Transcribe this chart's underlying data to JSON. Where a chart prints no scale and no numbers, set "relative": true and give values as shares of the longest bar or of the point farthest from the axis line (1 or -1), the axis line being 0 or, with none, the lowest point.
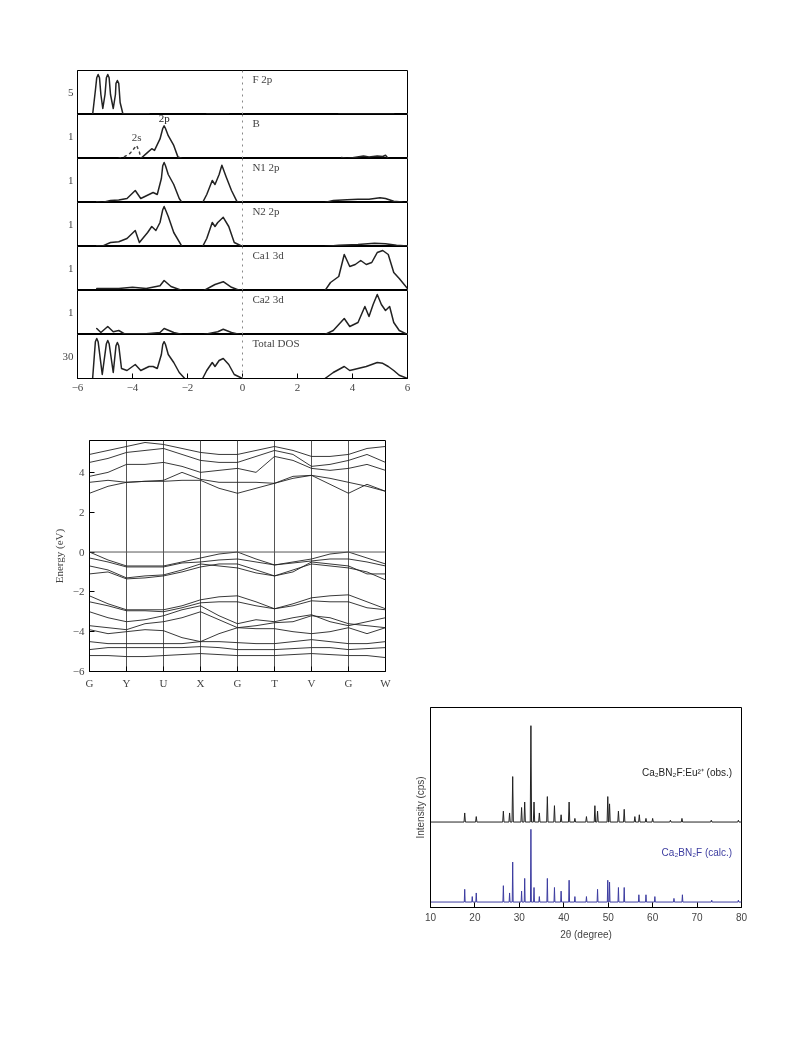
{
  "chart_data": [
    {
      "type": "line",
      "title": "F 2p",
      "relative": true,
      "xlim": [
        -6,
        6
      ],
      "tick_labels": false,
      "series": [
        {
          "color": "#222222",
          "x": [
            -5.45,
            -5.35,
            -5.3,
            -5.25,
            -5.2,
            -5.15,
            -5.08,
            -5.0,
            -4.95,
            -4.9,
            -4.85,
            -4.8,
            -4.7,
            -4.62,
            -4.6,
            -4.55,
            -4.5,
            -4.45,
            -4.35,
            -4.0,
            -3.4,
            -3.3,
            -1.3,
            -0.5,
            -0.4,
            3.5,
            5.5
          ],
          "values": [
            0,
            0.6,
            0.92,
            1.0,
            0.92,
            0.5,
            0.15,
            0.5,
            0.92,
            1.0,
            0.92,
            0.5,
            0.15,
            0.5,
            0.78,
            0.85,
            0.78,
            0.3,
            0.02,
            0.02,
            0.02,
            null,
            0.01,
            0.01,
            null,
            0.01,
            0.01
          ]
        }
      ],
      "ref_lines": [
        {
          "axis": "x",
          "value": 0,
          "color": "#888888",
          "line_style": "dotted"
        }
      ],
      "annotations": [
        "5"
      ]
    },
    {
      "type": "line",
      "title": "B",
      "relative": true,
      "xlim": [
        -6,
        6
      ],
      "tick_labels": false,
      "series": [
        {
          "name": "2p",
          "color": "#222222",
          "x": [
            -3.7,
            -3.5,
            -3.3,
            -3.2,
            -3.0,
            -2.9,
            -2.85,
            -2.8,
            -2.7,
            -2.5,
            -2.35,
            -2.2,
            -2.0,
            3.6,
            3.8,
            4.0,
            4.4,
            4.6,
            4.9,
            5.1,
            5.2,
            5.3
          ],
          "values": [
            0,
            0.15,
            0.3,
            0.25,
            0.6,
            0.92,
            1.0,
            0.92,
            0.7,
            0.4,
            0.05,
            0,
            null,
            0.03,
            0,
            0.02,
            0.08,
            0.05,
            0.08,
            0.06,
            0.1,
            0
          ]
        },
        {
          "name": "2s",
          "color": "#444444",
          "line_style": "dotted",
          "x": [
            -4.5,
            -4.3,
            -4.1,
            -3.95,
            -3.85,
            -3.75,
            -3.7
          ],
          "values": [
            0,
            0.05,
            0.15,
            0.3,
            0.4,
            0.2,
            0
          ]
        }
      ],
      "ref_lines": [
        {
          "axis": "x",
          "value": 0,
          "color": "#888888",
          "line_style": "dotted"
        }
      ],
      "annotations": [
        "1"
      ]
    },
    {
      "type": "line",
      "title": "N1 2p",
      "relative": true,
      "xlim": [
        -6,
        6
      ],
      "tick_labels": false,
      "series": [
        {
          "color": "#222222",
          "x": [
            -5.3,
            -5.1,
            -4.8,
            -4.5,
            -4.2,
            -3.9,
            -3.7,
            -3.4,
            -3.25,
            -3.1,
            -2.95,
            -2.9,
            -2.85,
            -2.8,
            -2.7,
            -2.5,
            -2.3,
            -2.2,
            -1.8,
            -1.45,
            -1.3,
            -1.1,
            -1.0,
            -0.85,
            -0.75,
            -0.6,
            -0.4,
            -0.2,
            0,
            1.5,
            3.0,
            3.3,
            3.8,
            4.2,
            4.6,
            5.0,
            5.2,
            5.5,
            5.8
          ],
          "values": [
            0.02,
            0,
            0.05,
            0.06,
            0.1,
            0.3,
            0.1,
            0.2,
            0.25,
            0.2,
            0.6,
            0.92,
            1.0,
            0.92,
            0.7,
            0.45,
            0.1,
            0,
            null,
            0,
            0.2,
            0.55,
            0.45,
            0.7,
            0.93,
            0.65,
            0.3,
            0.02,
            0,
            null,
            0,
            0.05,
            0.07,
            0.08,
            0.08,
            0.12,
            0.1,
            0.03,
            0.01
          ]
        }
      ],
      "ref_lines": [
        {
          "axis": "x",
          "value": 0,
          "color": "#888888",
          "line_style": "dotted"
        }
      ],
      "annotations": [
        "1"
      ]
    },
    {
      "type": "line",
      "title": "N2 2p",
      "relative": true,
      "xlim": [
        -6,
        6
      ],
      "tick_labels": false,
      "series": [
        {
          "color": "#222222",
          "x": [
            -5.3,
            -5.1,
            -4.8,
            -4.5,
            -4.2,
            -3.9,
            -3.75,
            -3.45,
            -3.3,
            -3.15,
            -3.0,
            -2.9,
            -2.85,
            -2.8,
            -2.7,
            -2.5,
            -2.2,
            -1.8,
            -1.45,
            -1.3,
            -1.1,
            -1.0,
            -0.9,
            -0.7,
            -0.5,
            -0.3,
            0,
            1.5,
            3.0,
            3.5,
            4.2,
            4.8,
            5.2,
            5.6,
            6.0
          ],
          "values": [
            0.02,
            0.01,
            0.1,
            0.12,
            0.2,
            0.4,
            0.1,
            0.35,
            0.5,
            0.4,
            0.6,
            0.92,
            1.0,
            0.92,
            0.75,
            0.35,
            0,
            null,
            0,
            0.2,
            0.6,
            0.5,
            0.6,
            0.73,
            0.5,
            0.1,
            0,
            null,
            0,
            0.03,
            0.05,
            0.08,
            0.07,
            0.03,
            0.01
          ]
        }
      ],
      "ref_lines": [
        {
          "axis": "x",
          "value": 0,
          "color": "#888888",
          "line_style": "dotted"
        }
      ],
      "annotations": [
        "1"
      ]
    },
    {
      "type": "line",
      "title": "Ca1 3d",
      "relative": true,
      "xlim": [
        -6,
        6
      ],
      "tick_labels": false,
      "series": [
        {
          "color": "#222222",
          "x": [
            -5.3,
            -4.5,
            -4.0,
            -3.5,
            -3.0,
            -2.85,
            -2.6,
            -2.2,
            -1.8,
            -1.4,
            -1.0,
            -0.7,
            -0.4,
            -0.1,
            1.5,
            3.0,
            3.2,
            3.5,
            3.7,
            3.9,
            4.1,
            4.3,
            4.5,
            4.7,
            4.9,
            5.1,
            5.3,
            5.5,
            5.7,
            6.0
          ],
          "values": [
            0.05,
            0.05,
            0.08,
            0.05,
            0.12,
            0.25,
            0.1,
            0,
            null,
            0,
            0.15,
            0.22,
            0.08,
            0,
            null,
            0,
            0.2,
            0.35,
            0.9,
            0.6,
            0.65,
            0.75,
            0.65,
            0.7,
            0.95,
            1.0,
            0.9,
            0.45,
            0.3,
            0.05
          ]
        }
      ],
      "ref_lines": [
        {
          "axis": "x",
          "value": 0,
          "color": "#888888",
          "line_style": "dotted"
        }
      ],
      "annotations": [
        "1"
      ]
    },
    {
      "type": "line",
      "title": "Ca2 3d",
      "relative": true,
      "xlim": [
        -6,
        6
      ],
      "tick_labels": false,
      "series": [
        {
          "color": "#222222",
          "x": [
            -5.3,
            -5.15,
            -4.9,
            -4.7,
            -4.5,
            -4.3,
            -3.5,
            -3.0,
            -2.85,
            -2.5,
            -2.2,
            -1.8,
            -1.4,
            -0.9,
            -0.7,
            -0.4,
            -0.1,
            1.5,
            3.0,
            3.3,
            3.7,
            3.9,
            4.2,
            4.45,
            4.6,
            4.75,
            4.9,
            5.05,
            5.2,
            5.35,
            5.5,
            5.7,
            6.0
          ],
          "values": [
            0.15,
            0.05,
            0.2,
            0.07,
            0.1,
            0.02,
            0.02,
            0.05,
            0.15,
            0.05,
            0,
            null,
            0,
            0.07,
            0.13,
            0.05,
            0,
            null,
            0,
            0.1,
            0.4,
            0.2,
            0.3,
            0.7,
            0.45,
            0.75,
            1.0,
            0.75,
            0.6,
            0.7,
            0.3,
            0.1,
            0
          ]
        }
      ],
      "ref_lines": [
        {
          "axis": "x",
          "value": 0,
          "color": "#888888",
          "line_style": "dotted"
        }
      ],
      "annotations": [
        "1"
      ]
    },
    {
      "type": "line",
      "title": "Total DOS",
      "relative": true,
      "xlim": [
        -6,
        6
      ],
      "xticks": [
        -6,
        -4,
        -2,
        0,
        2,
        4,
        6
      ],
      "tick_labels": "x",
      "series": [
        {
          "color": "#222222",
          "x": [
            -5.45,
            -5.35,
            -5.3,
            -5.25,
            -5.1,
            -4.95,
            -4.9,
            -4.85,
            -4.7,
            -4.6,
            -4.55,
            -4.5,
            -4.4,
            -4.2,
            -3.9,
            -3.7,
            -3.4,
            -3.25,
            -3.1,
            -2.95,
            -2.9,
            -2.85,
            -2.8,
            -2.7,
            -2.5,
            -2.3,
            -2.1,
            -1.8,
            -1.45,
            -1.3,
            -1.1,
            -1.0,
            -0.85,
            -0.7,
            -0.5,
            -0.3,
            0,
            1.5,
            3.0,
            3.3,
            3.7,
            3.9,
            4.2,
            4.5,
            4.7,
            4.9,
            5.1,
            5.3,
            5.5,
            5.7,
            6.0
          ],
          "values": [
            0,
            0.92,
            1.0,
            0.92,
            0.1,
            0.87,
            0.95,
            0.87,
            0.15,
            0.82,
            0.9,
            0.82,
            0.25,
            0.2,
            0.35,
            0.2,
            0.3,
            0.3,
            0.25,
            0.6,
            0.85,
            0.92,
            0.85,
            0.6,
            0.4,
            0.15,
            0,
            null,
            0,
            0.2,
            0.4,
            0.3,
            0.45,
            0.5,
            0.35,
            0.1,
            0,
            null,
            0,
            0.15,
            0.3,
            0.2,
            0.25,
            0.3,
            0.35,
            0.4,
            0.38,
            0.3,
            0.2,
            0.08,
            0
          ]
        }
      ],
      "ref_lines": [
        {
          "axis": "x",
          "value": 0,
          "color": "#888888",
          "line_style": "dotted"
        }
      ],
      "annotations": [
        "30"
      ]
    },
    {
      "type": "line",
      "ylabel": "Energy (eV)",
      "ylim": [
        -6,
        5.6
      ],
      "yticks": [
        -6,
        -4,
        -2,
        0,
        2,
        4
      ],
      "categories": [
        "G",
        null,
        "Y",
        null,
        "U",
        null,
        "X",
        null,
        "G",
        null,
        "T",
        null,
        "V",
        null,
        "G",
        null,
        "W"
      ],
      "grid": "x",
      "ref_lines": [
        {
          "axis": "y",
          "value": 0,
          "color": "#555555"
        }
      ],
      "series": [
        {
          "color": "#222222",
          "values": [
            2.95,
            3.3,
            3.5,
            3.55,
            3.55,
            3.6,
            3.6,
            3.2,
            2.95,
            3.2,
            3.45,
            3.8,
            3.85,
            3.4,
            2.95,
            3.4,
            3.05
          ]
        },
        {
          "color": "#222222",
          "values": [
            3.5,
            3.6,
            3.5,
            3.55,
            3.6,
            4.0,
            3.65,
            3.5,
            3.5,
            3.5,
            3.45,
            3.7,
            3.85,
            3.7,
            3.5,
            3.3,
            3.05
          ]
        },
        {
          "color": "#222222",
          "values": [
            3.8,
            4.0,
            4.4,
            4.4,
            4.5,
            4.3,
            4.0,
            4.1,
            4.2,
            4.0,
            4.8,
            4.6,
            4.2,
            4.1,
            4.2,
            4.4,
            4.1
          ]
        },
        {
          "color": "#222222",
          "values": [
            4.5,
            4.7,
            5.0,
            5.1,
            5.2,
            4.9,
            4.6,
            4.5,
            4.5,
            4.8,
            5.1,
            4.9,
            4.3,
            4.4,
            4.6,
            4.9,
            4.5
          ]
        },
        {
          "color": "#222222",
          "values": [
            4.9,
            5.1,
            5.3,
            5.5,
            5.4,
            5.2,
            5.0,
            4.9,
            4.9,
            5.1,
            5.3,
            5.1,
            4.8,
            4.8,
            4.9,
            5.2,
            5.3
          ]
        },
        {
          "color": "#222222",
          "values": [
            0.0,
            -0.4,
            -0.7,
            -0.7,
            -0.7,
            -0.5,
            -0.3,
            -0.1,
            0.0,
            -0.35,
            -0.65,
            -0.5,
            -0.35,
            -0.1,
            0.0,
            -0.3,
            -0.6
          ]
        },
        {
          "color": "#222222",
          "values": [
            -0.3,
            -0.5,
            -0.75,
            -0.75,
            -0.75,
            -0.55,
            -0.5,
            -0.4,
            -0.35,
            -0.5,
            -0.65,
            -0.55,
            -0.45,
            -0.35,
            -0.35,
            -0.5,
            -0.7
          ]
        },
        {
          "color": "#222222",
          "values": [
            -0.7,
            -0.9,
            -1.3,
            -1.2,
            -1.15,
            -0.9,
            -0.6,
            -0.7,
            -0.8,
            -1.05,
            -1.2,
            -0.9,
            -0.6,
            -0.7,
            -0.8,
            -1.0,
            -1.4
          ]
        },
        {
          "color": "#222222",
          "values": [
            -1.1,
            -1.0,
            -1.35,
            -1.3,
            -1.2,
            -1.0,
            -0.75,
            -0.6,
            -0.6,
            -0.9,
            -1.2,
            -1.0,
            -0.5,
            -0.6,
            -0.7,
            -1.1,
            -1.1
          ]
        },
        {
          "color": "#222222",
          "values": [
            -2.2,
            -2.6,
            -2.9,
            -2.9,
            -2.9,
            -2.7,
            -2.4,
            -2.25,
            -2.2,
            -2.5,
            -2.85,
            -2.6,
            -2.3,
            -2.2,
            -2.15,
            -2.5,
            -2.85
          ]
        },
        {
          "color": "#222222",
          "values": [
            -2.5,
            -2.7,
            -2.95,
            -2.95,
            -3.0,
            -2.8,
            -2.55,
            -2.5,
            -2.5,
            -2.7,
            -2.85,
            -2.7,
            -2.45,
            -2.5,
            -2.5,
            -2.8,
            -2.9
          ]
        },
        {
          "color": "#222222",
          "values": [
            -3.0,
            -3.3,
            -3.5,
            -3.4,
            -3.2,
            -2.9,
            -2.7,
            -3.2,
            -3.6,
            -3.4,
            -3.5,
            -3.3,
            -3.15,
            -3.5,
            -3.7,
            -3.5,
            -3.3
          ]
        },
        {
          "color": "#222222",
          "values": [
            -3.7,
            -3.8,
            -3.9,
            -3.6,
            -3.5,
            -3.3,
            -3.0,
            -3.4,
            -3.8,
            -3.7,
            -3.55,
            -3.5,
            -3.2,
            -3.3,
            -3.6,
            -3.7,
            -3.8
          ]
        },
        {
          "color": "#222222",
          "values": [
            -3.9,
            -4.1,
            -4.0,
            -3.9,
            -3.95,
            -4.3,
            -4.5,
            -4.1,
            -3.8,
            -3.85,
            -3.85,
            -4.0,
            -4.1,
            -4.0,
            -3.8,
            -4.1,
            -3.8
          ]
        },
        {
          "color": "#222222",
          "values": [
            -4.5,
            -4.6,
            -4.6,
            -4.6,
            -4.6,
            -4.6,
            -4.5,
            -4.5,
            -4.55,
            -4.6,
            -4.6,
            -4.5,
            -4.4,
            -4.5,
            -4.6,
            -4.6,
            -4.5
          ]
        },
        {
          "color": "#222222",
          "values": [
            -4.9,
            -4.8,
            -4.8,
            -4.8,
            -4.8,
            -4.8,
            -4.75,
            -4.8,
            -4.9,
            -4.9,
            -4.9,
            -4.85,
            -4.8,
            -4.8,
            -4.9,
            -4.85,
            -4.8
          ]
        },
        {
          "color": "#222222",
          "values": [
            -5.2,
            -5.2,
            -5.25,
            -5.25,
            -5.2,
            -5.15,
            -5.1,
            -5.15,
            -5.2,
            -5.2,
            -5.2,
            -5.15,
            -5.1,
            -5.15,
            -5.2,
            -5.2,
            -5.3
          ]
        }
      ]
    },
    {
      "type": "line",
      "relative": true,
      "xlabel": "2θ (degree)",
      "ylabel": "Intensity (cps)",
      "xlim": [
        10,
        80
      ],
      "xticks": [
        10,
        20,
        30,
        40,
        50,
        60,
        70,
        80
      ],
      "series": [
        {
          "name": "Ca₂BN₂F:Eu²⁺ (obs.)",
          "color": "#222222",
          "x": [
            10,
            17.55,
            17.7,
            17.85,
            20.15,
            20.3,
            20.45,
            26.25,
            26.4,
            26.55,
            27.65,
            27.8,
            27.95,
            28.35,
            28.5,
            28.65,
            30.35,
            30.5,
            30.65,
            31.05,
            31.2,
            31.35,
            32.45,
            32.6,
            32.75,
            33.15,
            33.3,
            33.45,
            34.35,
            34.5,
            34.65,
            36.15,
            36.3,
            36.45,
            37.75,
            37.9,
            38.05,
            39.25,
            39.4,
            39.55,
            41.05,
            41.2,
            41.35,
            42.35,
            42.5,
            42.65,
            44.95,
            45.1,
            45.25,
            46.85,
            47.0,
            47.15,
            47.45,
            47.6,
            47.75,
            49.75,
            49.9,
            50.05,
            50.15,
            50.3,
            50.45,
            52.15,
            52.3,
            52.45,
            53.45,
            53.6,
            53.75,
            55.85,
            56.0,
            56.15,
            56.85,
            57.0,
            57.15,
            58.35,
            58.5,
            58.65,
            59.85,
            60.0,
            60.15,
            63.85,
            64.0,
            64.15,
            66.45,
            66.6,
            66.75,
            73.05,
            73.2,
            73.35,
            79.15,
            79.3,
            79.45,
            80
          ],
          "values": [
            0.47,
            0.47,
            0.52,
            0.47,
            0.47,
            0.5,
            0.47,
            0.47,
            0.53,
            0.47,
            0.47,
            0.52,
            0.47,
            0.47,
            0.72,
            0.47,
            0.47,
            0.55,
            0.47,
            0.47,
            0.58,
            0.47,
            0.47,
            1.0,
            0.47,
            0.47,
            0.58,
            0.47,
            0.47,
            0.52,
            0.47,
            0.47,
            0.61,
            0.47,
            0.47,
            0.56,
            0.47,
            0.47,
            0.51,
            0.47,
            0.47,
            0.58,
            0.47,
            0.47,
            0.49,
            0.47,
            0.47,
            0.5,
            0.47,
            0.47,
            0.56,
            0.47,
            0.47,
            0.53,
            0.47,
            0.47,
            0.61,
            0.47,
            0.47,
            0.57,
            0.47,
            0.47,
            0.53,
            0.47,
            0.47,
            0.54,
            0.47,
            0.47,
            0.5,
            0.47,
            0.47,
            0.51,
            0.47,
            0.47,
            0.49,
            0.47,
            0.47,
            0.49,
            0.47,
            0.47,
            0.48,
            0.47,
            0.47,
            0.49,
            0.47,
            0.47,
            0.48,
            0.47,
            0.47,
            0.48,
            0.47,
            0.47
          ]
        },
        {
          "name": "Ca₂BN₂F (calc.)",
          "color": "#3c3ca0",
          "x": [
            10,
            17.6,
            17.7,
            17.8,
            19.3,
            19.4,
            19.5,
            20.2,
            20.3,
            20.4,
            26.3,
            26.4,
            26.5,
            27.7,
            27.8,
            27.9,
            28.4,
            28.5,
            28.6,
            30.4,
            30.5,
            30.6,
            31.1,
            31.2,
            31.3,
            32.5,
            32.6,
            32.7,
            33.2,
            33.3,
            33.4,
            34.4,
            34.5,
            34.6,
            36.2,
            36.3,
            36.4,
            37.8,
            37.9,
            38.0,
            39.3,
            39.4,
            39.5,
            41.1,
            41.2,
            41.3,
            42.4,
            42.5,
            42.6,
            45.0,
            45.1,
            45.2,
            47.5,
            47.6,
            47.7,
            49.8,
            49.9,
            50.0,
            50.2,
            50.3,
            50.4,
            52.2,
            52.3,
            52.4,
            53.5,
            53.6,
            53.7,
            56.8,
            56.9,
            57.0,
            58.4,
            58.5,
            58.6,
            60.4,
            60.5,
            60.6,
            64.7,
            64.8,
            64.9,
            66.6,
            66.7,
            66.8,
            73.2,
            73.3,
            73.4,
            79.2,
            79.3,
            79.4,
            80
          ],
          "values": [
            0.03,
            0.03,
            0.1,
            0.03,
            0.03,
            0.06,
            0.03,
            0.03,
            0.08,
            0.03,
            0.03,
            0.12,
            0.03,
            0.03,
            0.08,
            0.03,
            0.03,
            0.25,
            0.03,
            0.03,
            0.09,
            0.03,
            0.03,
            0.16,
            0.03,
            0.03,
            0.43,
            0.03,
            0.03,
            0.11,
            0.03,
            0.03,
            0.06,
            0.03,
            0.03,
            0.16,
            0.03,
            0.03,
            0.11,
            0.03,
            0.03,
            0.09,
            0.03,
            0.03,
            0.15,
            0.03,
            0.03,
            0.06,
            0.03,
            0.03,
            0.06,
            0.03,
            0.03,
            0.1,
            0.03,
            0.03,
            0.15,
            0.03,
            0.03,
            0.14,
            0.03,
            0.03,
            0.11,
            0.03,
            0.03,
            0.11,
            0.03,
            0.03,
            0.07,
            0.03,
            0.03,
            0.07,
            0.03,
            0.03,
            0.06,
            0.03,
            0.03,
            0.05,
            0.03,
            0.03,
            0.07,
            0.03,
            0.03,
            0.04,
            0.03,
            0.03,
            0.04,
            0.03,
            0.03
          ]
        }
      ]
    }
  ]
}
